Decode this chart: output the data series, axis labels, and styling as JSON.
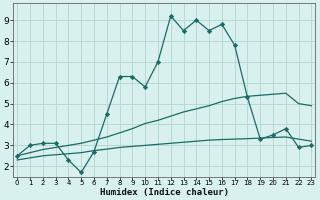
{
  "xlabel": "Humidex (Indice chaleur)",
  "bg_color": "#d8f0ee",
  "grid_color": "#b8d8d4",
  "line_color": "#1a6b65",
  "x_ticks": [
    0,
    1,
    2,
    3,
    4,
    5,
    6,
    7,
    8,
    9,
    10,
    11,
    12,
    13,
    14,
    15,
    16,
    17,
    18,
    19,
    20,
    21,
    22,
    23
  ],
  "y_ticks": [
    2,
    3,
    4,
    5,
    6,
    7,
    8,
    9
  ],
  "xlim": [
    -0.3,
    23.3
  ],
  "ylim": [
    1.5,
    9.8
  ],
  "line1_x": [
    0,
    1,
    2,
    3,
    4,
    5,
    6,
    7,
    8,
    9,
    10,
    11,
    12,
    13,
    14,
    15,
    16,
    17,
    18,
    19,
    20,
    21,
    22,
    23
  ],
  "line1_y": [
    2.5,
    3.0,
    3.1,
    3.1,
    2.3,
    1.7,
    2.7,
    4.5,
    6.3,
    6.3,
    5.8,
    7.0,
    9.2,
    8.5,
    9.0,
    8.5,
    8.8,
    7.8,
    5.3,
    3.3,
    3.5,
    3.8,
    2.9,
    3.0
  ],
  "line2_x": [
    0,
    1,
    2,
    3,
    4,
    5,
    6,
    7,
    8,
    9,
    10,
    11,
    12,
    13,
    14,
    15,
    16,
    17,
    18,
    19,
    20,
    21,
    22,
    23
  ],
  "line2_y": [
    2.5,
    2.65,
    2.8,
    2.9,
    3.0,
    3.1,
    3.25,
    3.4,
    3.6,
    3.8,
    4.05,
    4.2,
    4.4,
    4.6,
    4.75,
    4.9,
    5.1,
    5.25,
    5.35,
    5.4,
    5.45,
    5.5,
    5.0,
    4.9
  ],
  "line3_x": [
    0,
    1,
    2,
    3,
    4,
    5,
    6,
    7,
    8,
    9,
    10,
    11,
    12,
    13,
    14,
    15,
    16,
    17,
    18,
    19,
    20,
    21,
    22,
    23
  ],
  "line3_y": [
    2.3,
    2.4,
    2.5,
    2.55,
    2.6,
    2.65,
    2.75,
    2.82,
    2.9,
    2.95,
    3.0,
    3.05,
    3.1,
    3.15,
    3.2,
    3.25,
    3.28,
    3.3,
    3.32,
    3.35,
    3.38,
    3.4,
    3.3,
    3.2
  ]
}
